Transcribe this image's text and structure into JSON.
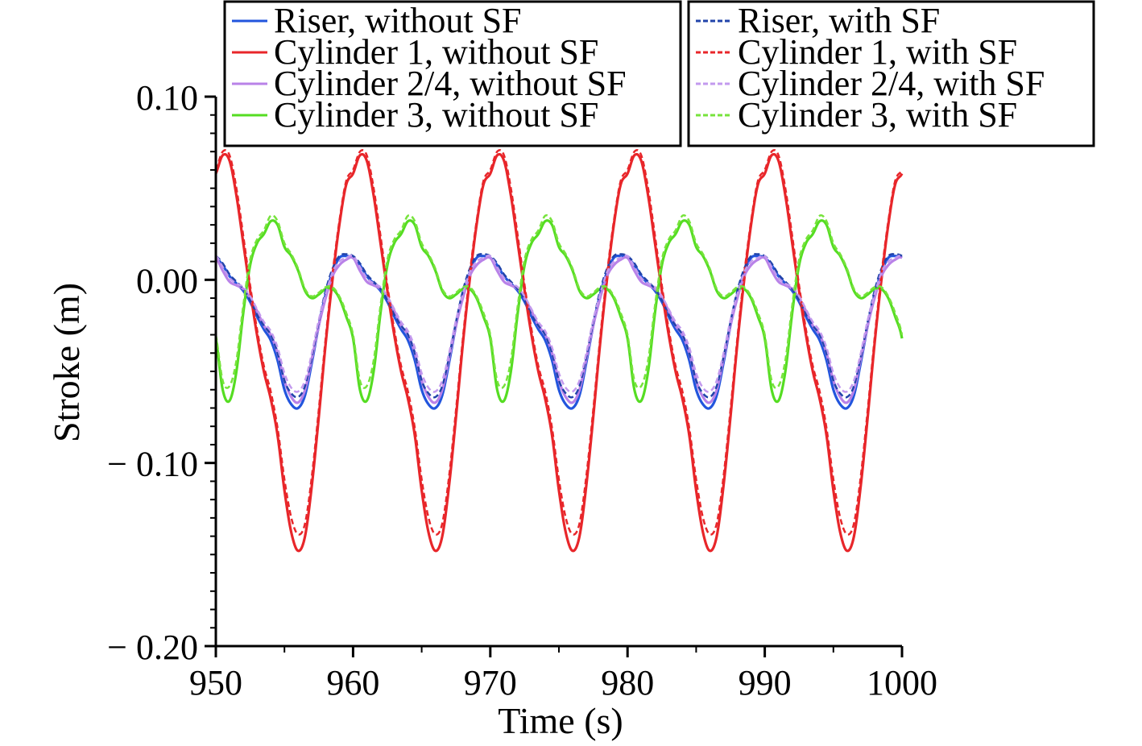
{
  "chart_data": {
    "type": "line",
    "title": "",
    "xlabel": "Time (s)",
    "ylabel": "Stroke (m)",
    "xlim": [
      950,
      1000
    ],
    "ylim": [
      -0.2,
      0.1
    ],
    "x_ticks": [
      950,
      960,
      970,
      980,
      990,
      1000
    ],
    "x_tick_labels": [
      "950",
      "960",
      "970",
      "980",
      "990",
      "1000"
    ],
    "y_ticks": [
      0.1,
      0.0,
      -0.1,
      -0.2
    ],
    "y_tick_labels": [
      "0.10",
      "0.00",
      "− 0.10",
      "− 0.20"
    ],
    "grid": false,
    "period_s": 10,
    "series": [
      {
        "name": "Riser, without SF",
        "color": "#2255dd",
        "dash": "solid",
        "period": 10,
        "cycle_t": [
          0,
          0.5,
          1,
          1.5,
          2,
          2.5,
          3,
          3.5,
          4,
          4.5,
          5,
          5.5,
          6,
          6.5,
          7,
          7.5,
          8,
          8.5,
          9,
          9.5,
          10
        ],
        "cycle_y": [
          0.012,
          0.008,
          0.002,
          -0.002,
          -0.006,
          -0.012,
          -0.02,
          -0.027,
          -0.033,
          -0.044,
          -0.06,
          -0.068,
          -0.07,
          -0.063,
          -0.045,
          -0.025,
          -0.008,
          0.004,
          0.012,
          0.013,
          0.012
        ]
      },
      {
        "name": "Cylinder 1, without SF",
        "color": "#e8262a",
        "dash": "solid",
        "period": 10,
        "cycle_t": [
          0,
          0.5,
          1,
          1.5,
          2,
          2.5,
          3,
          3.5,
          4,
          4.5,
          5,
          5.5,
          6,
          6.5,
          7,
          7.5,
          8,
          8.5,
          9,
          9.5,
          10
        ],
        "cycle_y": [
          0.058,
          0.068,
          0.065,
          0.046,
          0.02,
          -0.006,
          -0.03,
          -0.05,
          -0.065,
          -0.085,
          -0.115,
          -0.138,
          -0.148,
          -0.14,
          -0.112,
          -0.075,
          -0.035,
          0.0,
          0.03,
          0.052,
          0.058
        ]
      },
      {
        "name": "Cylinder 2/4, without SF",
        "color": "#b982e8",
        "dash": "solid",
        "period": 10,
        "cycle_t": [
          0,
          0.5,
          1,
          1.5,
          2,
          2.5,
          3,
          3.5,
          4,
          4.5,
          5,
          5.5,
          6,
          6.5,
          7,
          7.5,
          8,
          8.5,
          9,
          9.5,
          10
        ],
        "cycle_y": [
          0.012,
          0.005,
          -0.001,
          -0.003,
          -0.005,
          -0.01,
          -0.017,
          -0.025,
          -0.03,
          -0.04,
          -0.055,
          -0.064,
          -0.067,
          -0.06,
          -0.043,
          -0.025,
          -0.01,
          0.002,
          0.008,
          0.011,
          0.012
        ]
      },
      {
        "name": "Cylinder 3, without SF",
        "color": "#55dd22",
        "dash": "solid",
        "period": 10,
        "cycle_t": [
          0,
          0.5,
          1,
          1.5,
          2,
          2.5,
          3,
          3.5,
          4,
          4.5,
          5,
          5.5,
          6,
          6.5,
          7,
          7.5,
          8,
          8.5,
          9,
          9.5,
          10
        ],
        "cycle_y": [
          -0.032,
          -0.06,
          -0.066,
          -0.05,
          -0.018,
          0.008,
          0.02,
          0.025,
          0.032,
          0.03,
          0.018,
          0.013,
          0.005,
          -0.006,
          -0.01,
          -0.008,
          -0.005,
          -0.005,
          -0.01,
          -0.02,
          -0.032
        ]
      },
      {
        "name": "Riser, with SF",
        "color": "#2244aa",
        "dash": "dashed",
        "period": 10,
        "cycle_t": [
          0,
          0.5,
          1,
          1.5,
          2,
          2.5,
          3,
          3.5,
          4,
          4.5,
          5,
          5.5,
          6,
          6.5,
          7,
          7.5,
          8,
          8.5,
          9,
          9.5,
          10
        ],
        "cycle_y": [
          0.013,
          0.009,
          0.003,
          -0.001,
          -0.005,
          -0.011,
          -0.019,
          -0.025,
          -0.03,
          -0.04,
          -0.055,
          -0.062,
          -0.064,
          -0.058,
          -0.042,
          -0.023,
          -0.006,
          0.006,
          0.013,
          0.014,
          0.013
        ]
      },
      {
        "name": "Cylinder 1, with SF",
        "color": "#e8262a",
        "dash": "dashed",
        "period": 10,
        "cycle_t": [
          0,
          0.5,
          1,
          1.5,
          2,
          2.5,
          3,
          3.5,
          4,
          4.5,
          5,
          5.5,
          6,
          6.5,
          7,
          7.5,
          8,
          8.5,
          9,
          9.5,
          10
        ],
        "cycle_y": [
          0.06,
          0.07,
          0.068,
          0.05,
          0.024,
          -0.003,
          -0.027,
          -0.047,
          -0.061,
          -0.081,
          -0.109,
          -0.13,
          -0.139,
          -0.133,
          -0.107,
          -0.071,
          -0.032,
          0.003,
          0.032,
          0.054,
          0.06
        ]
      },
      {
        "name": "Cylinder 2/4, with SF",
        "color": "#c39aee",
        "dash": "dashed",
        "period": 10,
        "cycle_t": [
          0,
          0.5,
          1,
          1.5,
          2,
          2.5,
          3,
          3.5,
          4,
          4.5,
          5,
          5.5,
          6,
          6.5,
          7,
          7.5,
          8,
          8.5,
          9,
          9.5,
          10
        ],
        "cycle_y": [
          0.013,
          0.007,
          0.001,
          -0.002,
          -0.004,
          -0.009,
          -0.016,
          -0.023,
          -0.028,
          -0.037,
          -0.051,
          -0.059,
          -0.061,
          -0.055,
          -0.04,
          -0.022,
          -0.008,
          0.004,
          0.01,
          0.012,
          0.013
        ]
      },
      {
        "name": "Cylinder 3, with SF",
        "color": "#77e33c",
        "dash": "dashed",
        "period": 10,
        "cycle_t": [
          0,
          0.5,
          1,
          1.5,
          2,
          2.5,
          3,
          3.5,
          4,
          4.5,
          5,
          5.5,
          6,
          6.5,
          7,
          7.5,
          8,
          8.5,
          9,
          9.5,
          10
        ],
        "cycle_y": [
          -0.03,
          -0.055,
          -0.058,
          -0.044,
          -0.014,
          0.011,
          0.022,
          0.027,
          0.035,
          0.032,
          0.02,
          0.014,
          0.006,
          -0.005,
          -0.009,
          -0.007,
          -0.004,
          -0.004,
          -0.009,
          -0.018,
          -0.03
        ]
      }
    ]
  }
}
